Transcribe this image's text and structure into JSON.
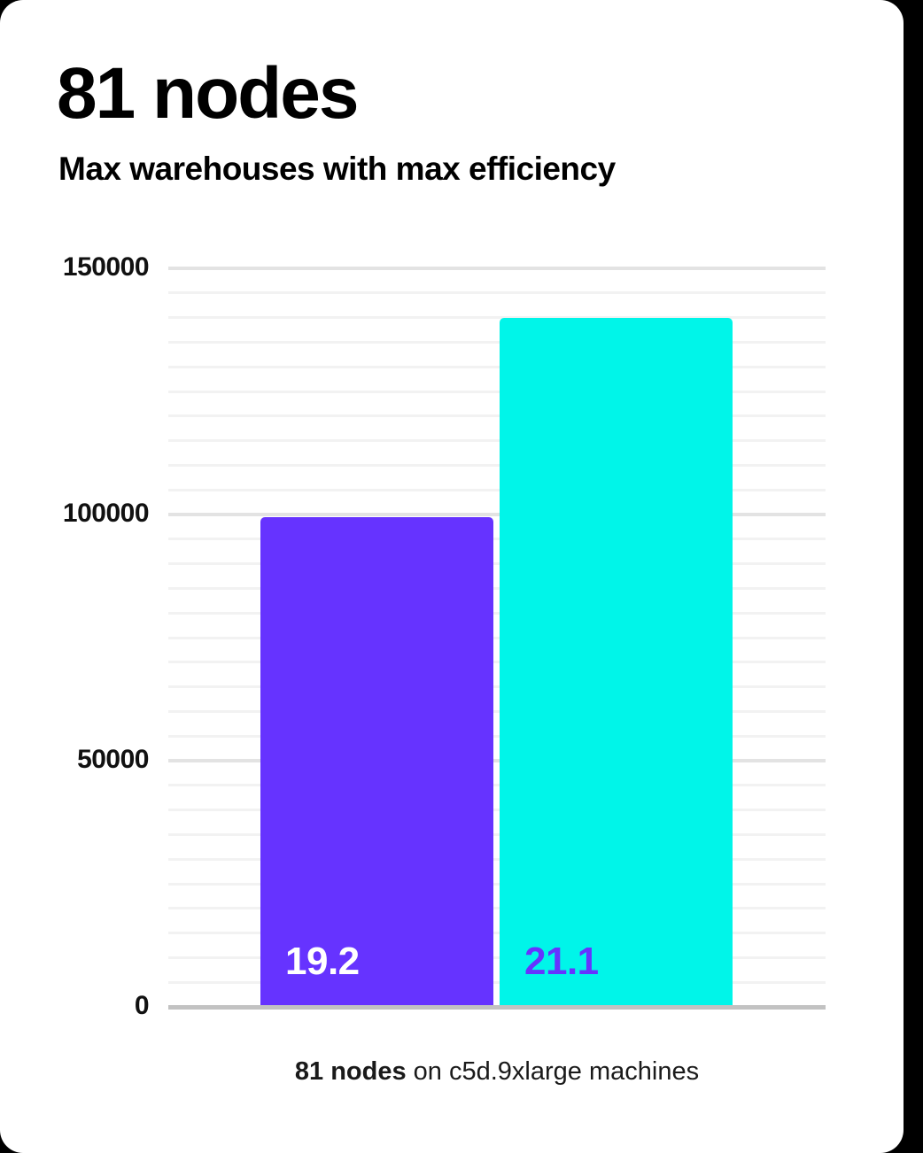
{
  "page": {
    "background_color": "#000000",
    "card_background_color": "#ffffff"
  },
  "header": {
    "title": "81 nodes",
    "subtitle": "Max warehouses with max efficiency"
  },
  "chart_data": {
    "type": "bar",
    "title": "81 nodes",
    "subtitle": "Max warehouses with max efficiency",
    "xlabel": "",
    "ylabel": "",
    "ylim": [
      0,
      150000
    ],
    "yticks": [
      0,
      50000,
      100000,
      150000
    ],
    "ytick_labels": [
      "0",
      "50000",
      "100000",
      "150000"
    ],
    "minor_gridline_step": 5000,
    "major_gridline_step": 50000,
    "grid": "horizontal only, minor and major lines, no vertical gridlines",
    "legend": "none",
    "series": [
      {
        "name": "left-bar",
        "value": 99500,
        "bar_label": "19.2",
        "bar_color": "#6633ff",
        "label_color": "#ffffff"
      },
      {
        "name": "right-bar",
        "value": 140000,
        "bar_label": "21.1",
        "bar_color": "#00f5e9",
        "label_color": "#6633ff"
      }
    ],
    "caption": {
      "bold": "81 nodes",
      "rest": " on c5d.9xlarge machines"
    }
  },
  "colors": {
    "axis_line": "#c2c2c2",
    "gridline_minor": "#f2f2f2",
    "gridline_major": "#e3e3e3",
    "tick_label": "#111111",
    "title": "#000000",
    "caption": "#1a1a1a"
  }
}
